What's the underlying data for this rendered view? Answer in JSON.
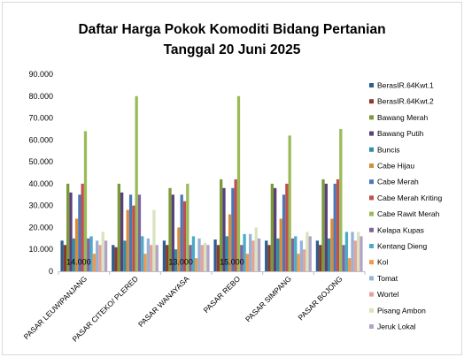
{
  "chart_data": {
    "type": "bar",
    "title_line1": "Daftar Harga Pokok Komoditi Bidang Pertanian",
    "title_line2": "Tanggal 20 Juni 2025",
    "ylim": [
      0,
      90000
    ],
    "yticks": [
      "0",
      "10.000",
      "20.000",
      "30.000",
      "40.000",
      "50.000",
      "60.000",
      "70.000",
      "80.000",
      "90.000"
    ],
    "grid": false,
    "legend_position": "right",
    "categories": [
      "PASAR LEUWIPANJANG",
      "PASAR CITEKO/ PLERED",
      "PASAR WANAYASA",
      "PASAR REBO",
      "PASAR SIMPANG",
      "PASAR BOJONG"
    ],
    "series": [
      {
        "name": "BerasIR.64Kwt.1",
        "color": "#2e5e8e",
        "values": [
          14000,
          12000,
          14000,
          14500,
          14000,
          14000
        ]
      },
      {
        "name": "BerasIR.64Kwt.2",
        "color": "#8b3a2e",
        "values": [
          12000,
          11000,
          12000,
          12000,
          12000,
          12000
        ]
      },
      {
        "name": "Bawang Merah",
        "color": "#7a9a3a",
        "values": [
          40000,
          40000,
          38000,
          42000,
          40000,
          42000
        ]
      },
      {
        "name": "Bawang Putih",
        "color": "#5a3f7a",
        "values": [
          36000,
          36000,
          35000,
          38000,
          38000,
          40000
        ]
      },
      {
        "name": "Buncis",
        "color": "#2f8fa6",
        "values": [
          15000,
          14000,
          10000,
          16000,
          15000,
          15000
        ]
      },
      {
        "name": "Cabe Hijau",
        "color": "#d98c3a",
        "values": [
          24000,
          28000,
          20000,
          26000,
          24000,
          24000
        ]
      },
      {
        "name": "Cabe Merah",
        "color": "#4a78b8",
        "values": [
          35000,
          35000,
          35000,
          38000,
          35000,
          40000
        ]
      },
      {
        "name": "Cabe Merah Kriting",
        "color": "#c0504d",
        "values": [
          40000,
          30000,
          32000,
          42000,
          40000,
          42000
        ]
      },
      {
        "name": "Cabe Rawit Merah",
        "color": "#9bbb59",
        "values": [
          64000,
          80000,
          40000,
          80000,
          62000,
          65000
        ]
      },
      {
        "name": "Kelapa Kupas",
        "color": "#8064a2",
        "values": [
          15000,
          35000,
          12000,
          12000,
          15000,
          12000
        ]
      },
      {
        "name": "Kentang Dieng",
        "color": "#4bacc6",
        "values": [
          16000,
          16000,
          16000,
          17000,
          16000,
          18000
        ]
      },
      {
        "name": "Kol",
        "color": "#f79646",
        "values": [
          8000,
          8000,
          6000,
          8000,
          8000,
          6000
        ]
      },
      {
        "name": "Tomat",
        "color": "#95b3d7",
        "values": [
          14000,
          15000,
          15000,
          17000,
          14000,
          18000
        ]
      },
      {
        "name": "Wortel",
        "color": "#e6a19b",
        "values": [
          12000,
          12000,
          12000,
          14000,
          10000,
          14000
        ]
      },
      {
        "name": "Pisang Ambon",
        "color": "#d7e4bd",
        "values": [
          18000,
          28000,
          13000,
          20000,
          18000,
          18000
        ]
      },
      {
        "name": "Jeruk Lokal",
        "color": "#b3a2c7",
        "values": [
          14000,
          12000,
          12000,
          15000,
          16000,
          16000
        ]
      }
    ],
    "data_labels": [
      {
        "category_index": 0,
        "text": "14.000"
      },
      {
        "category_index": 2,
        "text": "13.000"
      },
      {
        "category_index": 3,
        "text": "15.000"
      }
    ]
  }
}
